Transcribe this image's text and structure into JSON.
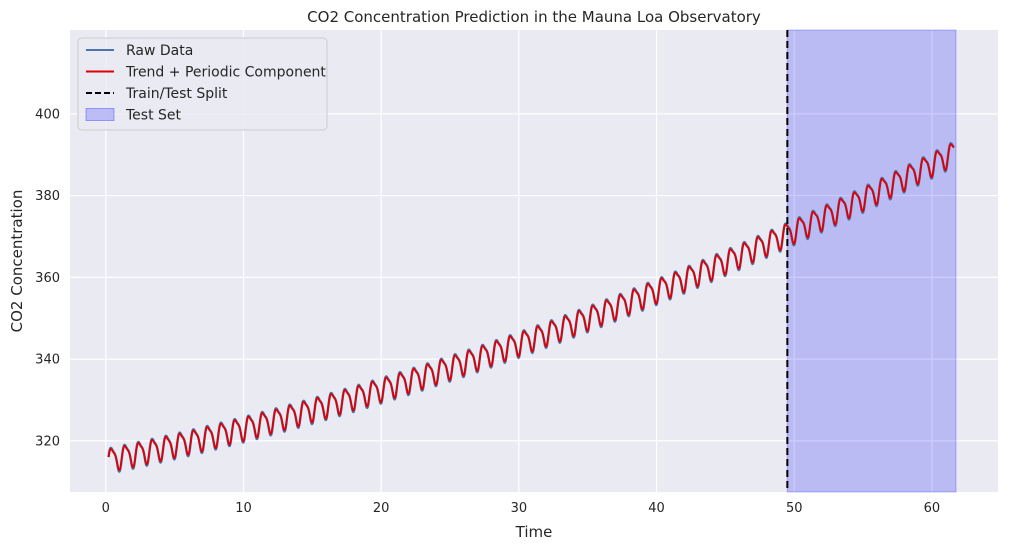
{
  "chart_data": {
    "type": "line",
    "title": "CO2 Concentration Prediction in the Mauna Loa Observatory",
    "xlabel": "Time",
    "ylabel": "CO2 Concentration",
    "xlim": [
      -2.6,
      64.8
    ],
    "ylim": [
      307.5,
      420.5
    ],
    "xticks": [
      0,
      10,
      20,
      30,
      40,
      50,
      60
    ],
    "yticks": [
      320,
      340,
      360,
      380,
      400
    ],
    "grid": true,
    "background": "#eaeaf2",
    "legend_position": "top-left",
    "train_test_split": 49.5,
    "test_set_range": [
      49.5,
      61.75
    ],
    "colors": {
      "raw": "#4c72b0",
      "trend": "#e00000",
      "split": "#000000",
      "test_fill": "#0000ff"
    },
    "series": [
      {
        "name": "Raw Data",
        "style": "solid-blue",
        "model": {
          "x_start": 0.2,
          "x_end": 61.6,
          "base": 315.5,
          "slope": 0.7,
          "curve": 0.0085,
          "amplitude": 3.2,
          "period": 1.0
        }
      },
      {
        "name": "Trend + Periodic Component",
        "style": "solid-red",
        "model": {
          "x_start": 0.2,
          "x_end": 61.6,
          "base": 315.5,
          "slope": 0.7,
          "curve": 0.0085,
          "amplitude": 2.9,
          "period": 1.0
        }
      }
    ],
    "legend": [
      {
        "label": "Raw Data",
        "kind": "line-blue"
      },
      {
        "label": "Trend + Periodic Component",
        "kind": "line-red"
      },
      {
        "label": "Train/Test Split",
        "kind": "dashed-black"
      },
      {
        "label": "Test Set",
        "kind": "fill-blue"
      }
    ]
  }
}
